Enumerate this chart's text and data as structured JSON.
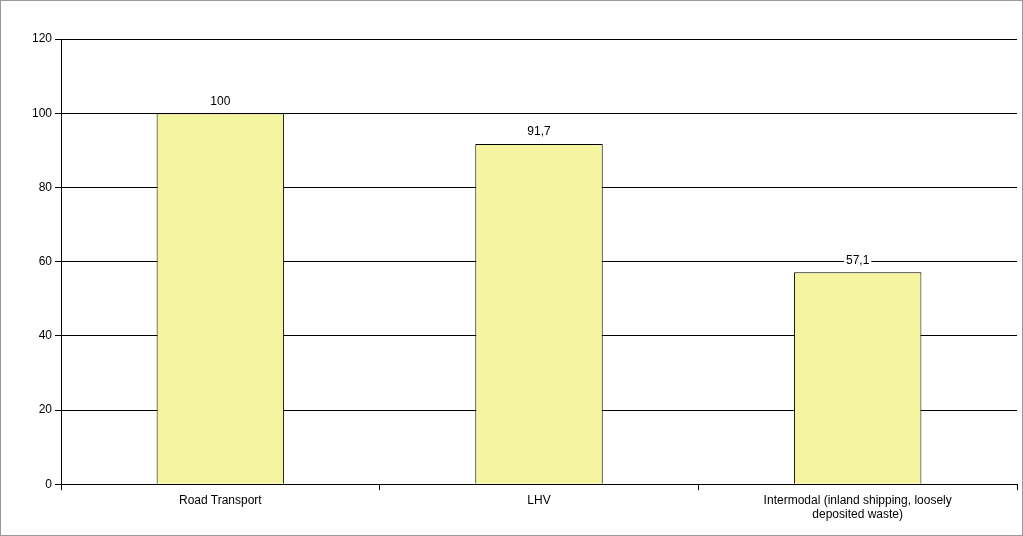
{
  "chart_data": {
    "type": "bar",
    "categories": [
      "Road Transport",
      "LHV",
      "Intermodal (inland shipping, loosely deposited waste)"
    ],
    "values": [
      100,
      91.7,
      57.1
    ],
    "value_labels": [
      "100",
      "91,7",
      "57,1"
    ],
    "color": "#f5f59f",
    "ylim": [
      0,
      120
    ],
    "yticks": [
      0,
      20,
      40,
      60,
      80,
      100,
      120
    ],
    "grid": "y",
    "legend": false
  }
}
